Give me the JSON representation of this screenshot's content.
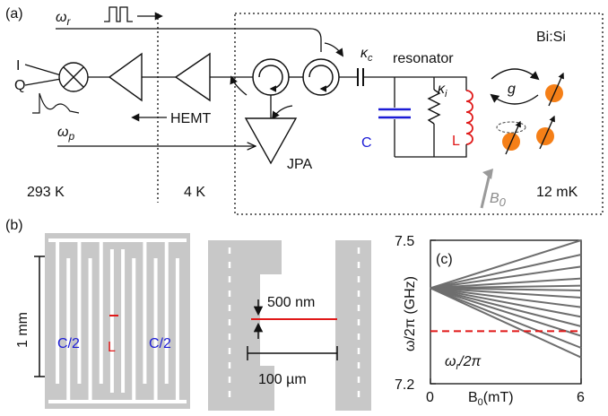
{
  "panels": {
    "a": {
      "label": "(a)",
      "omega_r": "ω",
      "omega_r_sub": "r",
      "omega_p": "ω",
      "omega_p_sub": "p",
      "I": "I",
      "Q": "Q",
      "hemt": "HEMT",
      "jpa": "JPA",
      "kappa_c": "κ",
      "kappa_c_sub": "c",
      "kappa_i": "κ",
      "kappa_i_sub": "i",
      "resonator": "resonator",
      "C": "C",
      "L": "L",
      "g": "g",
      "bisi": "Bi:Si",
      "B0": "B",
      "B0_sub": "0",
      "temp_room": "293 K",
      "temp_4k": "4 K",
      "temp_mk": "12 mK"
    },
    "b": {
      "label": "(b)",
      "scale_1mm": "1 mm",
      "c_half_left": "C/2",
      "c_half_right": "C/2",
      "L": "L",
      "scale_500nm": "500 nm",
      "scale_100um": "100 µm"
    },
    "c": {
      "label": "(c)",
      "ylabel": "ω/2π (GHz)",
      "xlabel": "B",
      "xlabel_sub": "0",
      "xlabel_unit": "(mT)",
      "annot": "ω",
      "annot_sub": "r",
      "annot_tail": "/2π"
    }
  },
  "colors": {
    "blue": "#1c1cd6",
    "red": "#e01818",
    "orange": "#f57f17",
    "gray": "#c8c8c8",
    "dark_gray": "#6e6e6e"
  },
  "chart_data": {
    "type": "line",
    "title": "",
    "xlabel": "B0 (mT)",
    "ylabel": "ω/2π (GHz)",
    "xlim": [
      0,
      6
    ],
    "ylim": [
      7.2,
      7.5
    ],
    "xticks": [
      "0",
      "6"
    ],
    "yticks": [
      "7.2",
      "7.5"
    ],
    "fan_origin": {
      "x": 0,
      "y": 7.4
    },
    "fan_end_values_at_6mT": [
      7.5,
      7.47,
      7.445,
      7.42,
      7.405,
      7.395,
      7.38,
      7.36,
      7.34,
      7.32,
      7.3,
      7.275,
      7.255
    ],
    "dashed_line": {
      "y": 7.31,
      "color": "#e01818"
    },
    "grid": false
  }
}
